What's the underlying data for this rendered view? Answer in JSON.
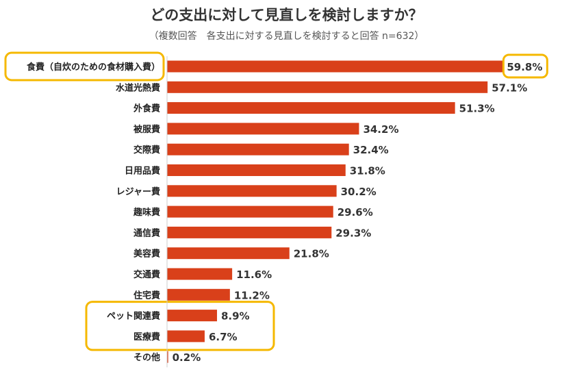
{
  "chart_data": {
    "type": "bar",
    "orientation": "horizontal",
    "title": "どの支出に対して見直しを検討しますか？",
    "subtitle": "（複数回答　各支出に対する見直しを検討すると回答 n=632）",
    "categories": [
      "食費（自炊のための食材購入費）",
      "水道光熱費",
      "外食費",
      "被服費",
      "交際費",
      "日用品費",
      "レジャー費",
      "趣味費",
      "通信費",
      "美容費",
      "交通費",
      "住宅費",
      "ペット関連費",
      "医療費",
      "その他"
    ],
    "values": [
      59.8,
      57.1,
      51.3,
      34.2,
      32.4,
      31.8,
      30.2,
      29.6,
      29.3,
      21.8,
      11.6,
      11.2,
      8.9,
      6.7,
      0.2
    ],
    "value_labels": [
      "59.8%",
      "57.1%",
      "51.3%",
      "34.2%",
      "32.4%",
      "31.8%",
      "30.2%",
      "29.6%",
      "29.3%",
      "21.8%",
      "11.6%",
      "11.2%",
      "8.9%",
      "6.7%",
      "0.2%"
    ],
    "unit": "%",
    "xlim": [
      0,
      60
    ],
    "highlighted_categories": [
      [
        "食費（自炊のための食材購入費）"
      ],
      [
        "ペット関連費",
        "医療費"
      ]
    ],
    "highlighted_value_labels": [
      "59.8%"
    ],
    "colors": {
      "bar": "#d9401a",
      "highlight": "#f5b800",
      "text": "#222222"
    }
  }
}
